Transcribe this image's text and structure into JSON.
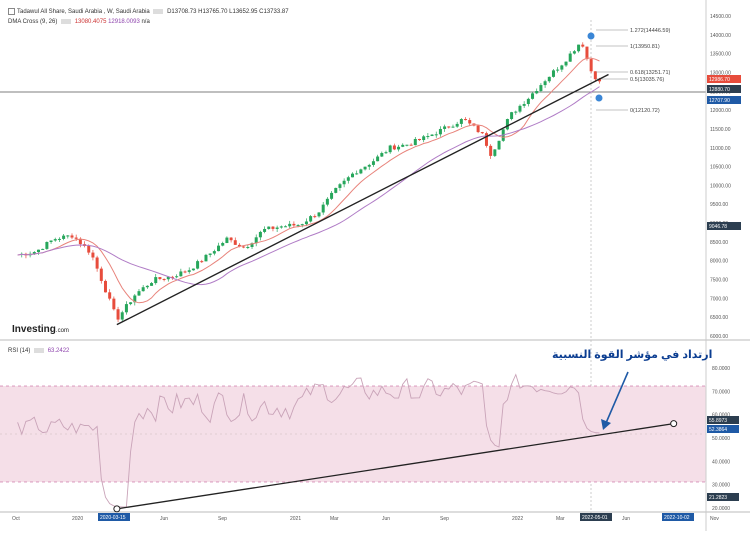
{
  "header": {
    "title": "Tadawul All Share, Saudi Arabia , W, Saudi Arabia",
    "ohlc": "D13708.73  H13765.70  L13652.95  C13733.87",
    "indicator": "DMA Cross (9, 26)",
    "indicator_v1": "13080.4075",
    "indicator_v2": "12918.0093",
    "indicator_na": "n/a",
    "rsi_label": "RSI (14)",
    "rsi_value": "63.2422"
  },
  "logo": {
    "name": "Investing",
    "suffix": ".com"
  },
  "annotation": "ارتداد في مؤشر القوة النسبية",
  "price_axis": {
    "ticks": [
      "14500.00",
      "14000.00",
      "13500.00",
      "13000.00",
      "12500.00",
      "12000.00",
      "11500.00",
      "11000.00",
      "10500.00",
      "10000.00",
      "9500.00",
      "9000.00",
      "8500.00",
      "8000.00",
      "7500.00",
      "7000.00",
      "6500.00",
      "6000.00"
    ],
    "badges": [
      {
        "text": "12986.70",
        "color": "#e74c3c"
      },
      {
        "text": "12880.70",
        "color": "#2c3e50"
      },
      {
        "text": "12707.90",
        "color": "#1f5aa6"
      },
      {
        "text": "9046.78",
        "color": "#2c3e50"
      }
    ]
  },
  "rsi_axis": {
    "ticks": [
      "80.0000",
      "70.0000",
      "60.0000",
      "50.0000",
      "40.0000",
      "30.0000",
      "20.0000"
    ],
    "badges": [
      {
        "text": "55.8973",
        "color": "#2c3e50"
      },
      {
        "text": "52.3864",
        "color": "#1f5aa6"
      },
      {
        "text": "21.2823",
        "color": "#2c3e50"
      }
    ]
  },
  "fib_levels": [
    {
      "label": "1.272(14446.59)"
    },
    {
      "label": "1(13950.81)"
    },
    {
      "label": "0.618(13251.71)"
    },
    {
      "label": "0.5(13035.76)"
    },
    {
      "label": "0(12120.72)"
    }
  ],
  "time_axis": {
    "labels": [
      "Oct",
      "2020",
      "Jun",
      "Sep",
      "2021",
      "Mar",
      "Jun",
      "Sep",
      "2022",
      "Mar",
      "Jun",
      "Nov"
    ],
    "badges": [
      {
        "text": "2020-03-15",
        "color": "#1f5aa6"
      },
      {
        "text": "2022-05-01",
        "color": "#2c3e50"
      },
      {
        "text": "2022-10-02",
        "color": "#1f5aa6"
      }
    ]
  },
  "chart_data": [
    {
      "type": "candlestick",
      "title": "Tadawul All Share, Saudi Arabia , W, Saudi Arabia",
      "ylim": [
        5800,
        14700
      ],
      "series_close": [
        [
          "2019-10-01",
          7900
        ],
        [
          "2019-11-01",
          8000
        ],
        [
          "2019-12-01",
          8350
        ],
        [
          "2020-01-01",
          8450
        ],
        [
          "2020-02-01",
          7950
        ],
        [
          "2020-03-15",
          6100
        ],
        [
          "2020-04-15",
          6800
        ],
        [
          "2020-05-15",
          7200
        ],
        [
          "2020-06-15",
          7300
        ],
        [
          "2020-07-15",
          7500
        ],
        [
          "2020-08-15",
          7900
        ],
        [
          "2020-09-15",
          8350
        ],
        [
          "2020-10-15",
          8100
        ],
        [
          "2020-11-15",
          8600
        ],
        [
          "2020-12-15",
          8700
        ],
        [
          "2021-01-15",
          8750
        ],
        [
          "2021-02-15",
          9100
        ],
        [
          "2021-03-15",
          9700
        ],
        [
          "2021-04-15",
          10200
        ],
        [
          "2021-05-15",
          10500
        ],
        [
          "2021-06-15",
          10900
        ],
        [
          "2021-07-15",
          11000
        ],
        [
          "2021-08-15",
          11200
        ],
        [
          "2021-09-15",
          11450
        ],
        [
          "2021-10-15",
          11700
        ],
        [
          "2021-11-15",
          11300
        ],
        [
          "2021-12-01",
          10700
        ],
        [
          "2022-01-01",
          11800
        ],
        [
          "2022-02-01",
          12300
        ],
        [
          "2022-03-01",
          12800
        ],
        [
          "2022-04-01",
          13300
        ],
        [
          "2022-05-01",
          13900
        ],
        [
          "2022-05-15",
          13100
        ],
        [
          "2022-06-01",
          12700
        ]
      ],
      "lines": [
        {
          "name": "support trend line",
          "from": [
            "2020-03-15",
            5950
          ],
          "to": [
            "2022-06-15",
            12950
          ]
        }
      ]
    },
    {
      "type": "line",
      "title": "RSI (14)",
      "ylim": [
        20,
        85
      ],
      "bands": [
        30,
        70
      ],
      "trend_line": {
        "from": [
          "2020-03-15",
          21.28
        ],
        "to": [
          "2022-10-02",
          55.9
        ]
      }
    }
  ]
}
